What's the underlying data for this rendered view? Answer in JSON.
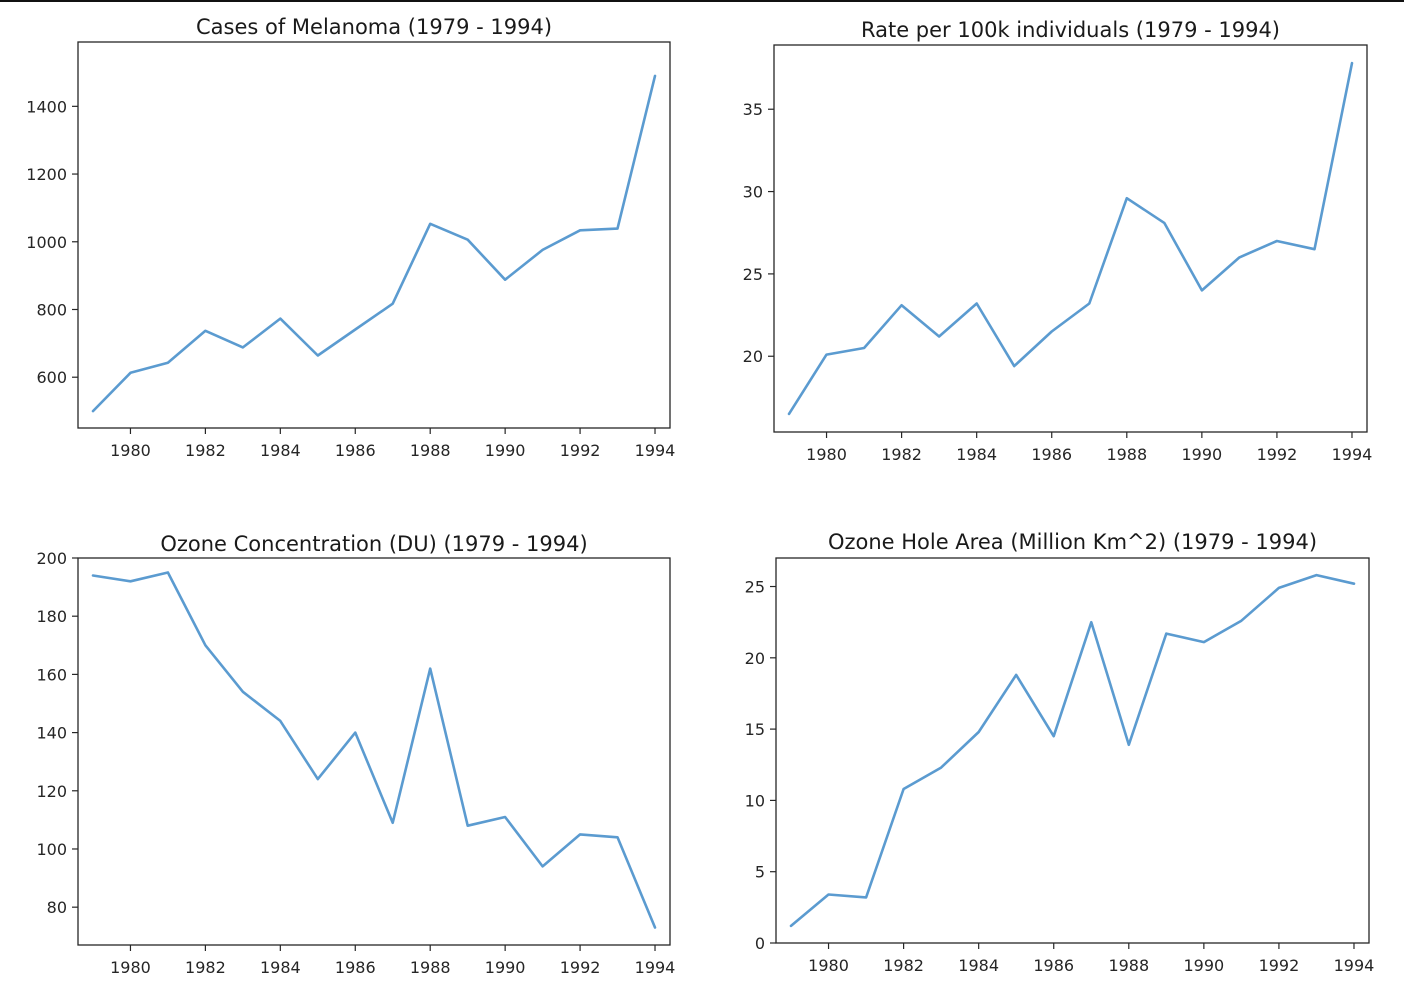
{
  "chart_data": [
    {
      "type": "line",
      "title": "Cases of Melanoma (1979 - 1994)",
      "xlabel": "",
      "ylabel": "",
      "x": [
        1979,
        1980,
        1981,
        1982,
        1983,
        1984,
        1985,
        1986,
        1987,
        1988,
        1989,
        1990,
        1991,
        1992,
        1993,
        1994
      ],
      "series": [
        {
          "values": [
            500,
            613,
            643,
            737,
            688,
            773,
            664,
            741,
            817,
            1053,
            1006,
            888,
            976,
            1034,
            1039,
            1490
          ]
        }
      ],
      "xticks": [
        "1980",
        "1982",
        "1984",
        "1986",
        "1988",
        "1990",
        "1992",
        "1994"
      ],
      "yticks": [
        "600",
        "800",
        "1000",
        "1200",
        "1400"
      ],
      "xlim": [
        1978.6,
        1994.4
      ],
      "ylim": [
        450,
        1590
      ],
      "grid": false
    },
    {
      "type": "line",
      "title": "Rate per 100k individuals (1979 - 1994)",
      "xlabel": "",
      "ylabel": "",
      "x": [
        1979,
        1980,
        1981,
        1982,
        1983,
        1984,
        1985,
        1986,
        1987,
        1988,
        1989,
        1990,
        1991,
        1992,
        1993,
        1994
      ],
      "series": [
        {
          "values": [
            16.5,
            20.1,
            20.5,
            23.1,
            21.2,
            23.2,
            19.4,
            21.5,
            23.2,
            29.6,
            28.1,
            24.0,
            26.0,
            27.0,
            26.5,
            37.8
          ]
        }
      ],
      "xticks": [
        "1980",
        "1982",
        "1984",
        "1986",
        "1988",
        "1990",
        "1992",
        "1994"
      ],
      "yticks": [
        "20",
        "25",
        "30",
        "35"
      ],
      "xlim": [
        1978.6,
        1994.4
      ],
      "ylim": [
        15.4,
        38.9
      ],
      "grid": false
    },
    {
      "type": "line",
      "title": "Ozone Concentration (DU) (1979 - 1994)",
      "xlabel": "",
      "ylabel": "",
      "x": [
        1979,
        1980,
        1981,
        1982,
        1983,
        1984,
        1985,
        1986,
        1987,
        1988,
        1989,
        1990,
        1991,
        1992,
        1993,
        1994
      ],
      "series": [
        {
          "values": [
            194,
            192,
            195,
            170,
            154,
            144,
            124,
            140,
            109,
            162,
            108,
            111,
            94,
            105,
            104,
            73
          ]
        }
      ],
      "xticks": [
        "1980",
        "1982",
        "1984",
        "1986",
        "1988",
        "1990",
        "1992",
        "1994"
      ],
      "yticks": [
        "80",
        "100",
        "120",
        "140",
        "160",
        "180",
        "200"
      ],
      "xlim": [
        1978.6,
        1994.4
      ],
      "ylim": [
        67,
        200
      ],
      "grid": false
    },
    {
      "type": "line",
      "title": "Ozone Hole Area (Million Km^2) (1979 - 1994)",
      "xlabel": "",
      "ylabel": "",
      "x": [
        1979,
        1980,
        1981,
        1982,
        1983,
        1984,
        1985,
        1986,
        1987,
        1988,
        1989,
        1990,
        1991,
        1992,
        1993,
        1994
      ],
      "series": [
        {
          "values": [
            1.2,
            3.4,
            3.2,
            10.8,
            12.3,
            14.8,
            18.8,
            14.5,
            22.5,
            13.9,
            21.7,
            21.1,
            22.6,
            24.9,
            25.8,
            25.2
          ]
        }
      ],
      "xticks": [
        "1980",
        "1982",
        "1984",
        "1986",
        "1988",
        "1990",
        "1992",
        "1994"
      ],
      "yticks": [
        "0",
        "5",
        "10",
        "15",
        "20",
        "25"
      ],
      "xlim": [
        1978.6,
        1994.4
      ],
      "ylim": [
        0,
        27
      ],
      "grid": false
    }
  ],
  "style": {
    "line_color": "#5b9bd0",
    "axis_color": "#262626",
    "text_color": "#1a1a1a"
  }
}
